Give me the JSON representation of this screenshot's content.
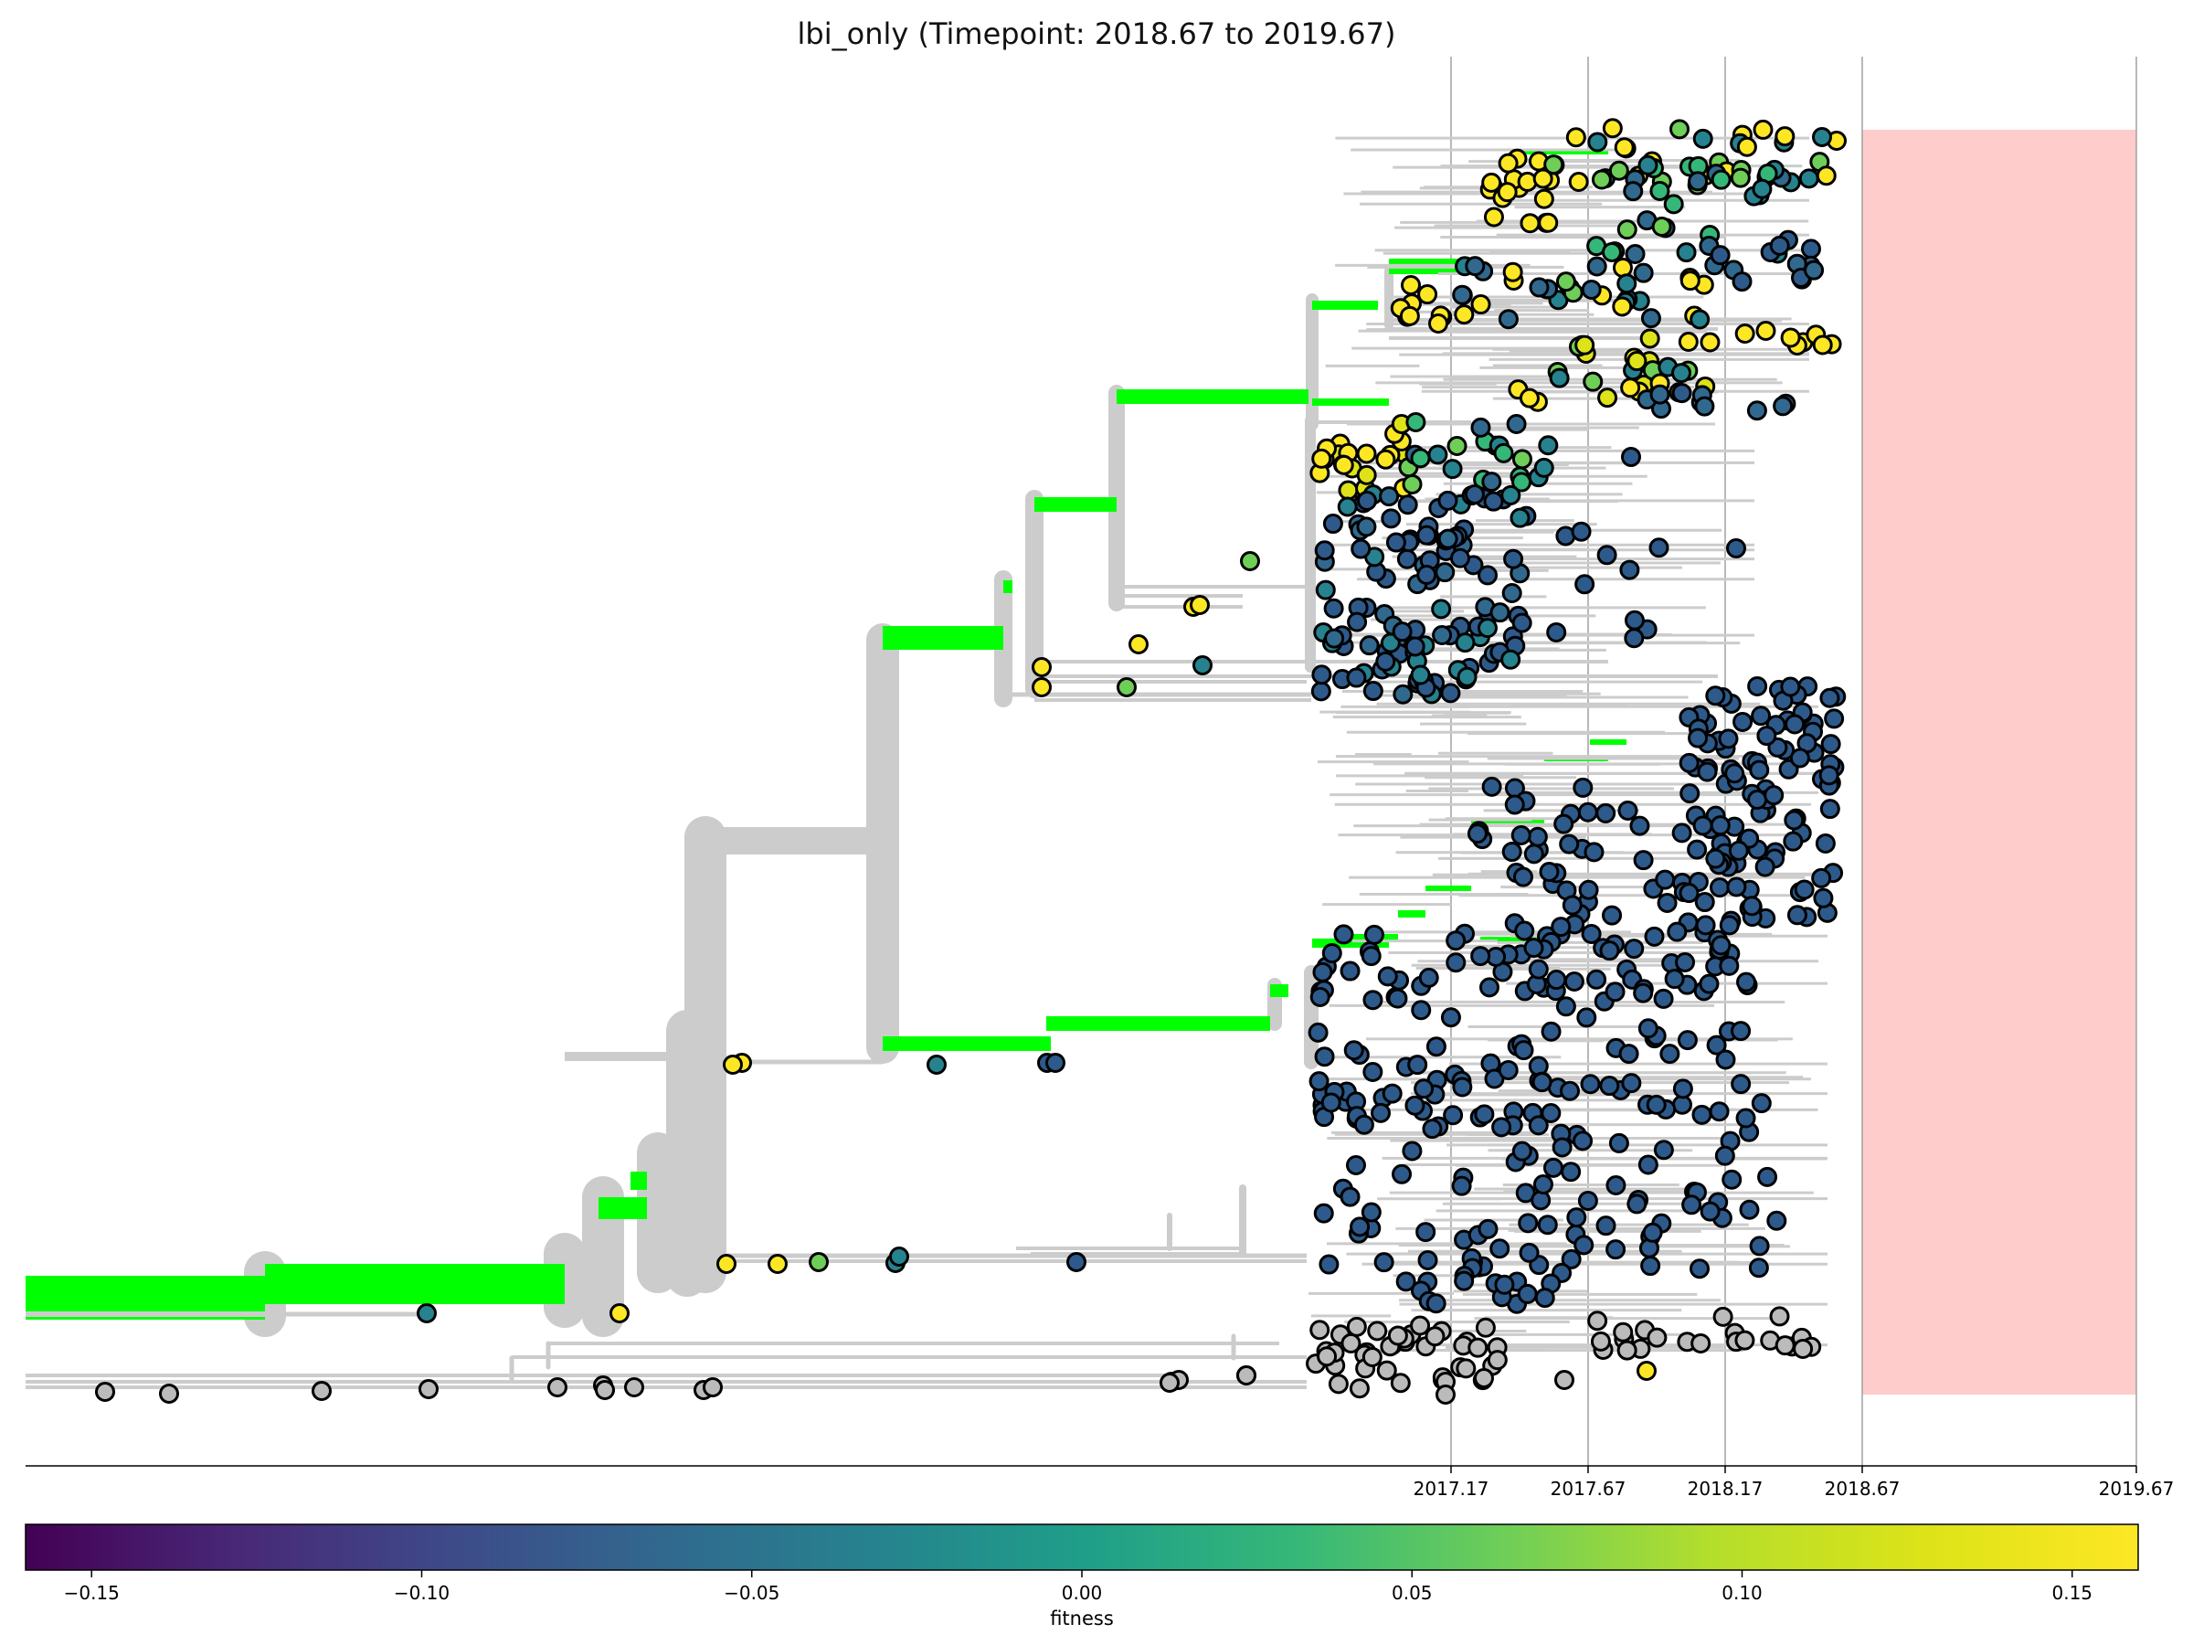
{
  "chart_data": {
    "type": "scatter",
    "subtype": "phylogenetic-tree",
    "title": "lbi_only (Timepoint: 2018.67 to 2019.67)",
    "x_ticks": [
      "2017.17",
      "2017.67",
      "2018.17",
      "2018.67",
      "2019.67"
    ],
    "x_tick_values": [
      2017.17,
      2017.67,
      2018.17,
      2018.67,
      2019.67
    ],
    "xlim": [
      2011.97,
      2019.67
    ],
    "forecast_window": [
      2018.67,
      2019.67
    ],
    "colorbar": {
      "label": "fitness",
      "ticks": [
        "−0.15",
        "−0.10",
        "−0.05",
        "0.00",
        "0.05",
        "0.10",
        "0.15"
      ],
      "tick_values": [
        -0.15,
        -0.1,
        -0.05,
        0.0,
        0.05,
        0.1,
        0.15
      ],
      "range": [
        -0.16,
        0.16
      ],
      "colormap": "viridis"
    },
    "colors": {
      "branch": "#cccccc",
      "highlight_branch": "#00ff00",
      "forecast_band": "#ffcccc",
      "unscored_tip": "#bbbbbb",
      "dominant_tip": "#2d5a8a"
    },
    "gridlines": true
  }
}
